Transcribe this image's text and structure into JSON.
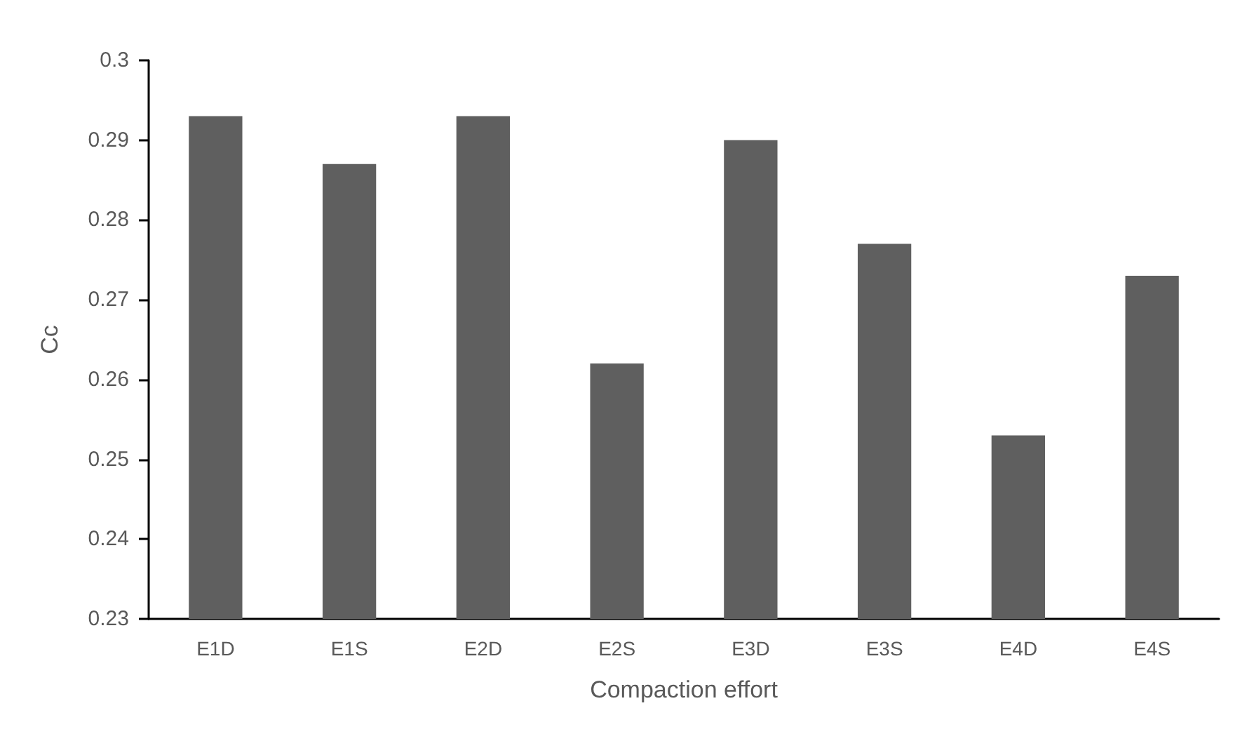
{
  "chart_data": {
    "type": "bar",
    "xlabel": "Compaction effort",
    "ylabel": "Cc",
    "categories": [
      "E1D",
      "E1S",
      "E2D",
      "E2S",
      "E3D",
      "E3S",
      "E4D",
      "E4S"
    ],
    "values": [
      0.293,
      0.287,
      0.293,
      0.262,
      0.29,
      0.277,
      0.253,
      0.273
    ],
    "color": "#5f5f5f",
    "ylim": [
      0.23,
      0.3
    ],
    "yticks": [
      0.23,
      0.24,
      0.25,
      0.26,
      0.27,
      0.28,
      0.29,
      0.3
    ],
    "grid": false
  }
}
